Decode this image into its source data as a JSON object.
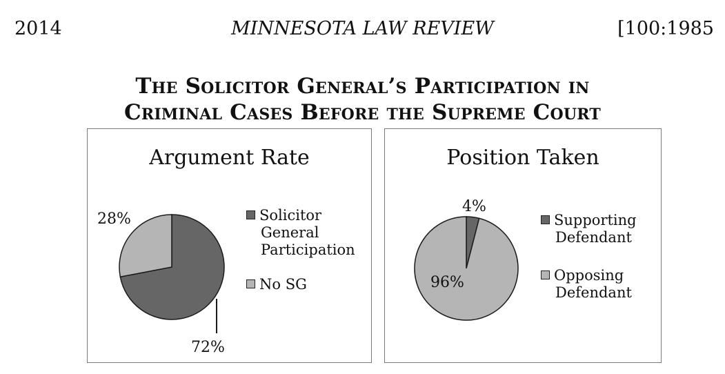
{
  "header": {
    "page_number": "2014",
    "journal": "MINNESOTA LAW REVIEW",
    "citation": "[100:1985"
  },
  "figure": {
    "title_line1": "The Solicitor General’s Participation in",
    "title_line2": "Criminal Cases Before the Supreme Court"
  },
  "colors": {
    "dark": "#666666",
    "light": "#b5b5b5",
    "stroke": "#1a1a1a"
  },
  "chart_data": [
    {
      "type": "pie",
      "title": "Argument Rate",
      "categories": [
        "Solicitor General Participation",
        "No SG"
      ],
      "legend_lines": [
        [
          "Solicitor",
          "General",
          "Participation"
        ],
        [
          "No SG"
        ]
      ],
      "values": [
        72,
        28
      ],
      "labels": [
        "72%",
        "28%"
      ],
      "legend": "right"
    },
    {
      "type": "pie",
      "title": "Position Taken",
      "categories": [
        "Supporting Defendant",
        "Opposing Defendant"
      ],
      "legend_lines": [
        [
          "Supporting",
          "Defendant"
        ],
        [
          "Opposing",
          "Defendant"
        ]
      ],
      "values": [
        4,
        96
      ],
      "labels": [
        "4%",
        "96%"
      ],
      "legend": "right"
    }
  ]
}
